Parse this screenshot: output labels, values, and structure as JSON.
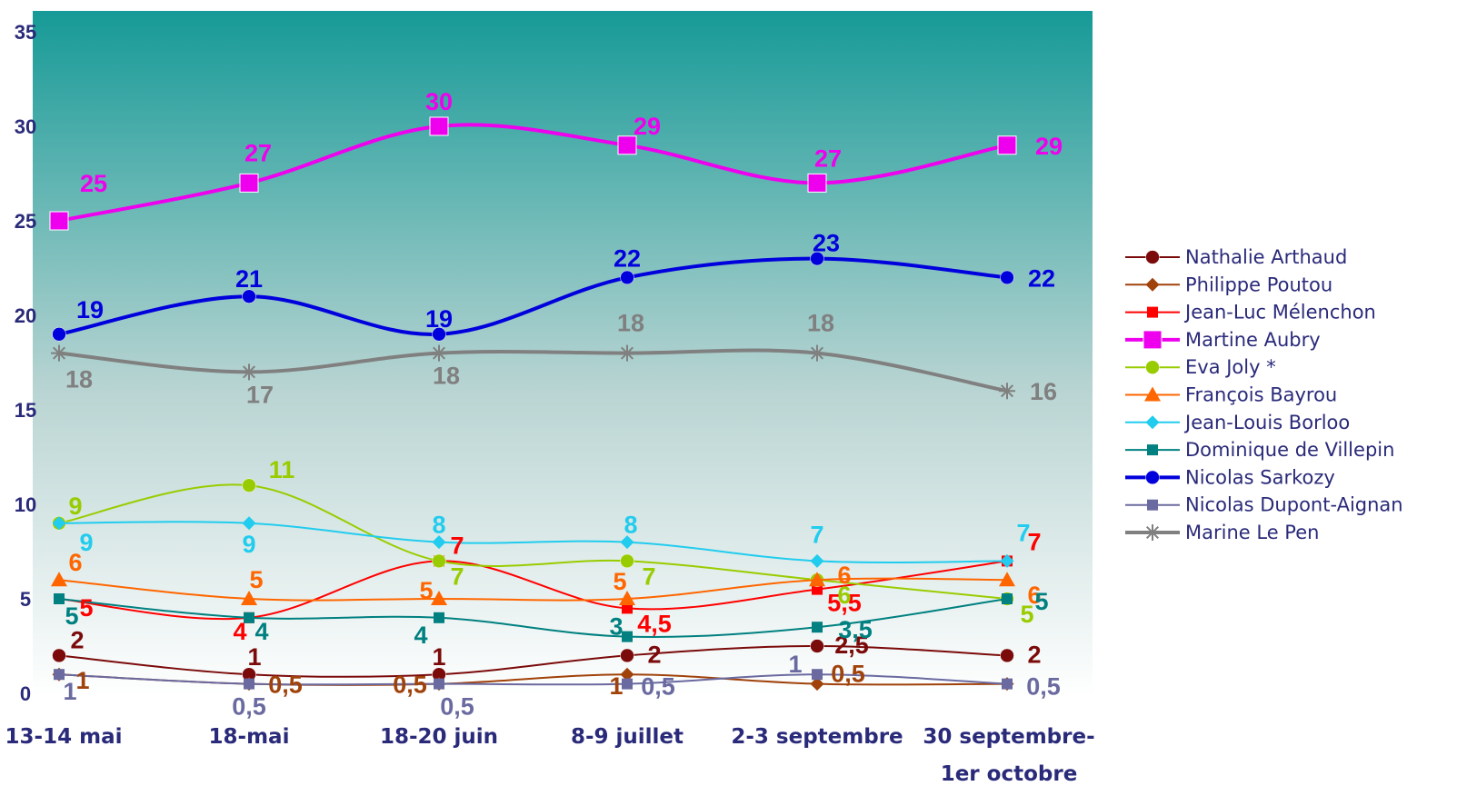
{
  "chart_data": {
    "type": "line",
    "title": "",
    "xlabel": "",
    "ylabel": "",
    "ylim": [
      0,
      35
    ],
    "yticks": [
      0,
      5,
      10,
      15,
      20,
      25,
      30,
      35
    ],
    "categories": [
      "13-14 mai",
      "18-mai",
      "18-20 juin",
      "8-9 juillet",
      "2-3 septembre",
      "30 septembre-|1er octobre"
    ],
    "legend_position": "right",
    "grid": false,
    "background": {
      "top": "#169a97",
      "bottom": "#ffffff"
    },
    "series": [
      {
        "name": "Nathalie Arthaud",
        "color": "#7b0a0a",
        "marker": "circle",
        "width": 2,
        "values": [
          2,
          1,
          1,
          2,
          2.5,
          2
        ],
        "labels": [
          "2",
          "1",
          "1",
          "2",
          "2,5",
          "2"
        ],
        "label_color": "#7b0a0a"
      },
      {
        "name": "Philippe Poutou",
        "color": "#a0420a",
        "marker": "diamond",
        "width": 2,
        "values": [
          1,
          0.5,
          0.5,
          1,
          0.5,
          0.5
        ],
        "labels": [
          "1",
          "0,5",
          "0,5",
          "1",
          "0,5",
          ""
        ],
        "label_color": "#a0420a"
      },
      {
        "name": "Jean-Luc Mélenchon",
        "color": "#ff0000",
        "marker": "square",
        "width": 2,
        "values": [
          5,
          4,
          7,
          4.5,
          5.5,
          7
        ],
        "labels": [
          "5",
          "4",
          "7",
          "4,5",
          "5,5",
          "7"
        ],
        "label_color": "#ff0000"
      },
      {
        "name": "Martine Aubry",
        "color": "#ee00ee",
        "marker": "square-big",
        "width": 4,
        "values": [
          25,
          27,
          30,
          29,
          27,
          29
        ],
        "labels": [
          "25",
          "27",
          "30",
          "29",
          "27",
          "29"
        ],
        "label_color": "#ee00ee"
      },
      {
        "name": "Eva Joly *",
        "color": "#99cc00",
        "marker": "circle",
        "width": 2,
        "values": [
          9,
          11,
          7,
          7,
          6,
          5
        ],
        "labels": [
          "9",
          "11",
          "7",
          "7",
          "6",
          "5"
        ],
        "label_color": "#99cc00"
      },
      {
        "name": "François Bayrou",
        "color": "#ff6600",
        "marker": "triangle",
        "width": 2,
        "values": [
          6,
          5,
          5,
          5,
          6,
          6
        ],
        "labels": [
          "6",
          "5",
          "5",
          "5",
          "6",
          "6"
        ],
        "label_color": "#ff6600"
      },
      {
        "name": "Jean-Louis Borloo",
        "color": "#22ccee",
        "marker": "diamond",
        "width": 2,
        "values": [
          9,
          9,
          8,
          8,
          7,
          7
        ],
        "labels": [
          "9",
          "9",
          "8",
          "8",
          "7",
          "7"
        ],
        "label_color": "#22ccee"
      },
      {
        "name": "Dominique de Villepin",
        "color": "#008080",
        "marker": "square",
        "width": 2,
        "values": [
          5,
          4,
          4,
          3,
          3.5,
          5
        ],
        "labels": [
          "5",
          "4",
          "4",
          "3",
          "3,5",
          "5"
        ],
        "label_color": "#008080"
      },
      {
        "name": "Nicolas Sarkozy",
        "color": "#0000dd",
        "marker": "circle",
        "width": 4,
        "values": [
          19,
          21,
          19,
          22,
          23,
          22
        ],
        "labels": [
          "19",
          "21",
          "19",
          "22",
          "23",
          "22"
        ],
        "label_color": "#0000dd"
      },
      {
        "name": "Nicolas Dupont-Aignan",
        "color": "#6a6aa0",
        "marker": "square",
        "width": 2,
        "values": [
          1,
          0.5,
          0.5,
          0.5,
          1,
          0.5
        ],
        "labels": [
          "1",
          "0,5",
          "0,5",
          "0,5",
          "1",
          "0,5"
        ],
        "label_color": "#6a6aa0"
      },
      {
        "name": "Marine Le Pen",
        "color": "#808080",
        "marker": "star",
        "width": 4,
        "values": [
          18,
          17,
          18,
          18,
          18,
          16
        ],
        "labels": [
          "18",
          "17",
          "18",
          "18",
          "18",
          "16"
        ],
        "label_color": "#808080"
      }
    ]
  }
}
